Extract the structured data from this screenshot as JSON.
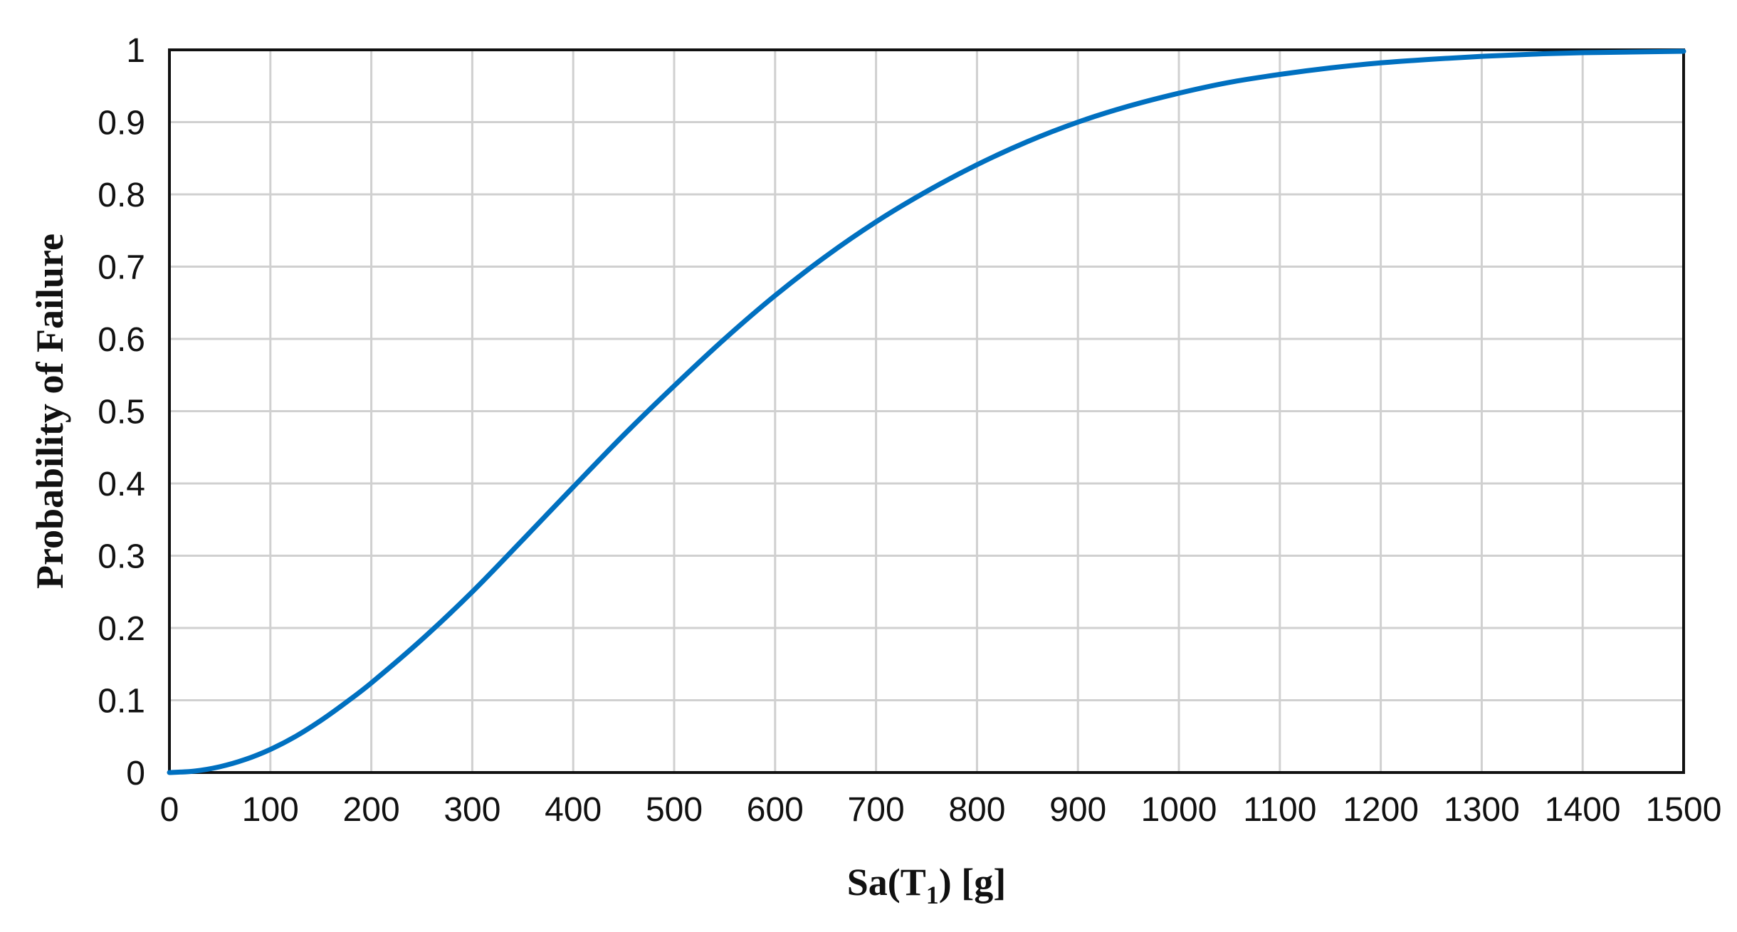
{
  "chart_data": {
    "type": "line",
    "title": "",
    "xlabel": "Sa(T1) [g]",
    "xlabel_main": "Sa(T",
    "xlabel_sub": "1",
    "xlabel_tail": ") [g]",
    "ylabel": "Probability of Failure",
    "xlim": [
      0,
      1500
    ],
    "ylim": [
      0,
      1
    ],
    "grid": true,
    "legend": "none",
    "x_ticks": [
      "0",
      "100",
      "200",
      "300",
      "400",
      "500",
      "600",
      "700",
      "800",
      "900",
      "1000",
      "1100",
      "1200",
      "1300",
      "1400",
      "1500"
    ],
    "y_ticks": [
      "0",
      "0.1",
      "0.2",
      "0.3",
      "0.4",
      "0.5",
      "0.6",
      "0.7",
      "0.8",
      "0.9",
      "1"
    ],
    "series": [
      {
        "color": "#0070C0",
        "x": [
          0,
          25,
          50,
          75,
          100,
          125,
          150,
          175,
          200,
          250,
          300,
          350,
          400,
          450,
          500,
          550,
          600,
          650,
          700,
          750,
          800,
          850,
          900,
          950,
          1000,
          1050,
          1100,
          1150,
          1200,
          1250,
          1300,
          1350,
          1400,
          1450,
          1500
        ],
        "y": [
          0,
          0.002,
          0.008,
          0.018,
          0.032,
          0.05,
          0.072,
          0.097,
          0.124,
          0.184,
          0.25,
          0.322,
          0.395,
          0.467,
          0.535,
          0.6,
          0.66,
          0.714,
          0.762,
          0.804,
          0.841,
          0.873,
          0.9,
          0.922,
          0.94,
          0.955,
          0.966,
          0.975,
          0.982,
          0.987,
          0.991,
          0.994,
          0.996,
          0.997,
          0.998
        ]
      }
    ]
  }
}
